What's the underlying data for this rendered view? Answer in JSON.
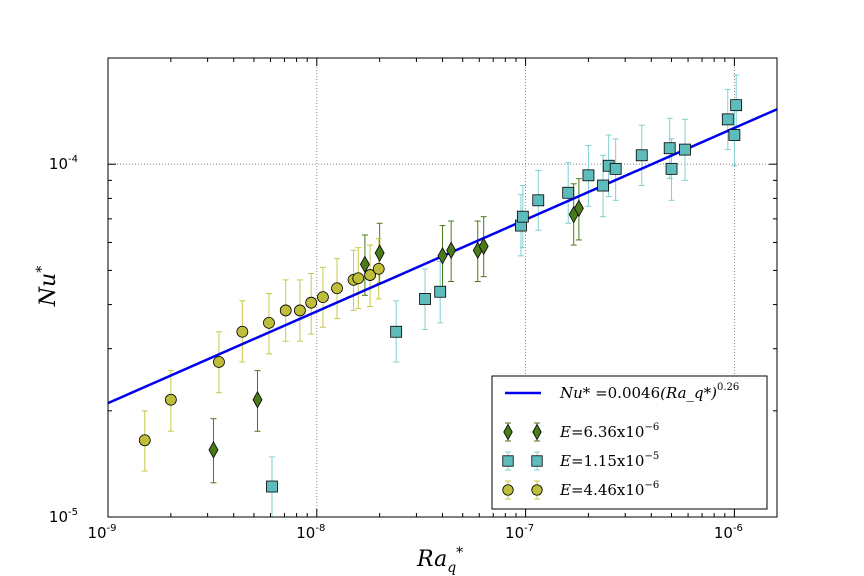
{
  "chart_data": {
    "type": "scatter",
    "scale": "log-log",
    "xlabel": "Ra_q*",
    "ylabel": "Nu*",
    "xlim": [
      1e-09,
      1.6e-06
    ],
    "ylim": [
      1e-05,
      0.0002
    ],
    "grid": true,
    "legend_position": "bottom-right",
    "x_ticks": [
      {
        "base": "10",
        "exp": "-9",
        "value": 1e-09
      },
      {
        "base": "10",
        "exp": "-8",
        "value": 1e-08
      },
      {
        "base": "10",
        "exp": "-7",
        "value": 1e-07
      },
      {
        "base": "10",
        "exp": "-6",
        "value": 1e-06
      }
    ],
    "y_ticks": [
      {
        "base": "10",
        "exp": "-5",
        "value": 1e-05
      },
      {
        "base": "10",
        "exp": "-4",
        "value": 0.0001
      }
    ],
    "fit": {
      "label_lhs": "Nu*",
      "label_coef": "=0.0046",
      "label_var": "(Ra_q*)",
      "label_exp": "0.26",
      "coef": 0.0046,
      "exponent": 0.26,
      "color": "#0000ee"
    },
    "series": [
      {
        "name": "E=6.36x10^-6",
        "label_e": "E",
        "label_mant": "=6.36x10",
        "label_exp": "−6",
        "marker": "diamond",
        "color": "#4a7a1a",
        "error_color": "#4a7a1a",
        "points": [
          {
            "x": 3.2e-09,
            "y": 1.55e-05,
            "lo": 1.25e-05,
            "hi": 1.9e-05
          },
          {
            "x": 5.2e-09,
            "y": 2.15e-05,
            "lo": 1.75e-05,
            "hi": 2.6e-05
          },
          {
            "x": 1.7e-08,
            "y": 5.2e-05,
            "lo": 4.25e-05,
            "hi": 6.3e-05
          },
          {
            "x": 2e-08,
            "y": 5.6e-05,
            "lo": 4.6e-05,
            "hi": 6.8e-05
          },
          {
            "x": 4e-08,
            "y": 5.5e-05,
            "lo": 4.5e-05,
            "hi": 6.7e-05
          },
          {
            "x": 4.4e-08,
            "y": 5.7e-05,
            "lo": 4.65e-05,
            "hi": 6.9e-05
          },
          {
            "x": 5.9e-08,
            "y": 5.7e-05,
            "lo": 4.65e-05,
            "hi": 6.9e-05
          },
          {
            "x": 6.3e-08,
            "y": 5.85e-05,
            "lo": 4.8e-05,
            "hi": 7.1e-05
          },
          {
            "x": 1.7e-07,
            "y": 7.2e-05,
            "lo": 5.9e-05,
            "hi": 8.8e-05
          },
          {
            "x": 1.8e-07,
            "y": 7.5e-05,
            "lo": 6.1e-05,
            "hi": 9.1e-05
          }
        ]
      },
      {
        "name": "E=1.15x10^-5",
        "label_e": "E",
        "label_mant": "=1.15x10",
        "label_exp": "−5",
        "marker": "square",
        "color": "#5fbcbc",
        "error_color": "#80d0d0",
        "points": [
          {
            "x": 6.1e-09,
            "y": 1.22e-05,
            "lo": 1e-05,
            "hi": 1.48e-05
          },
          {
            "x": 2.4e-08,
            "y": 3.35e-05,
            "lo": 2.75e-05,
            "hi": 4.1e-05
          },
          {
            "x": 3.3e-08,
            "y": 4.15e-05,
            "lo": 3.4e-05,
            "hi": 5.05e-05
          },
          {
            "x": 3.9e-08,
            "y": 4.35e-05,
            "lo": 3.55e-05,
            "hi": 5.3e-05
          },
          {
            "x": 9.5e-08,
            "y": 6.7e-05,
            "lo": 5.5e-05,
            "hi": 8.2e-05
          },
          {
            "x": 9.7e-08,
            "y": 7.1e-05,
            "lo": 5.8e-05,
            "hi": 8.7e-05
          },
          {
            "x": 1.15e-07,
            "y": 7.9e-05,
            "lo": 6.5e-05,
            "hi": 9.6e-05
          },
          {
            "x": 1.6e-07,
            "y": 8.3e-05,
            "lo": 6.8e-05,
            "hi": 0.000101
          },
          {
            "x": 2e-07,
            "y": 9.3e-05,
            "lo": 7.6e-05,
            "hi": 0.000113
          },
          {
            "x": 2.35e-07,
            "y": 8.7e-05,
            "lo": 7.1e-05,
            "hi": 0.000106
          },
          {
            "x": 2.5e-07,
            "y": 9.9e-05,
            "lo": 8.1e-05,
            "hi": 0.000121
          },
          {
            "x": 2.7e-07,
            "y": 9.7e-05,
            "lo": 7.9e-05,
            "hi": 0.000118
          },
          {
            "x": 3.6e-07,
            "y": 0.000106,
            "lo": 8.7e-05,
            "hi": 0.000129
          },
          {
            "x": 4.9e-07,
            "y": 0.000111,
            "lo": 9.1e-05,
            "hi": 0.000135
          },
          {
            "x": 5e-07,
            "y": 9.7e-05,
            "lo": 7.9e-05,
            "hi": 0.000118
          },
          {
            "x": 5.8e-07,
            "y": 0.00011,
            "lo": 9e-05,
            "hi": 0.000134
          },
          {
            "x": 9.3e-07,
            "y": 0.000134,
            "lo": 0.00011,
            "hi": 0.000163
          },
          {
            "x": 1e-06,
            "y": 0.000121,
            "lo": 9.9e-05,
            "hi": 0.000147
          },
          {
            "x": 1.02e-06,
            "y": 0.000147,
            "lo": 0.00012,
            "hi": 0.000179
          }
        ]
      },
      {
        "name": "E=4.46x10^-6",
        "label_e": "E",
        "label_mant": "=4.46x10",
        "label_exp": "−6",
        "marker": "circle",
        "color": "#bebe3a",
        "error_color": "#c8c84a",
        "points": [
          {
            "x": 1.5e-09,
            "y": 1.65e-05,
            "lo": 1.35e-05,
            "hi": 2e-05
          },
          {
            "x": 2e-09,
            "y": 2.15e-05,
            "lo": 1.75e-05,
            "hi": 2.6e-05
          },
          {
            "x": 3.4e-09,
            "y": 2.75e-05,
            "lo": 2.25e-05,
            "hi": 3.35e-05
          },
          {
            "x": 4.4e-09,
            "y": 3.35e-05,
            "lo": 2.75e-05,
            "hi": 4.1e-05
          },
          {
            "x": 5.9e-09,
            "y": 3.55e-05,
            "lo": 2.9e-05,
            "hi": 4.3e-05
          },
          {
            "x": 7.1e-09,
            "y": 3.85e-05,
            "lo": 3.15e-05,
            "hi": 4.7e-05
          },
          {
            "x": 8.3e-09,
            "y": 3.85e-05,
            "lo": 3.15e-05,
            "hi": 4.7e-05
          },
          {
            "x": 9.4e-09,
            "y": 4.05e-05,
            "lo": 3.3e-05,
            "hi": 4.9e-05
          },
          {
            "x": 1.07e-08,
            "y": 4.2e-05,
            "lo": 3.45e-05,
            "hi": 5.1e-05
          },
          {
            "x": 1.25e-08,
            "y": 4.45e-05,
            "lo": 3.65e-05,
            "hi": 5.4e-05
          },
          {
            "x": 1.5e-08,
            "y": 4.7e-05,
            "lo": 3.85e-05,
            "hi": 5.7e-05
          },
          {
            "x": 1.58e-08,
            "y": 4.75e-05,
            "lo": 3.9e-05,
            "hi": 5.8e-05
          },
          {
            "x": 1.8e-08,
            "y": 4.85e-05,
            "lo": 3.95e-05,
            "hi": 5.9e-05
          },
          {
            "x": 1.98e-08,
            "y": 5.05e-05,
            "lo": 4.15e-05,
            "hi": 6.15e-05
          }
        ]
      }
    ]
  }
}
